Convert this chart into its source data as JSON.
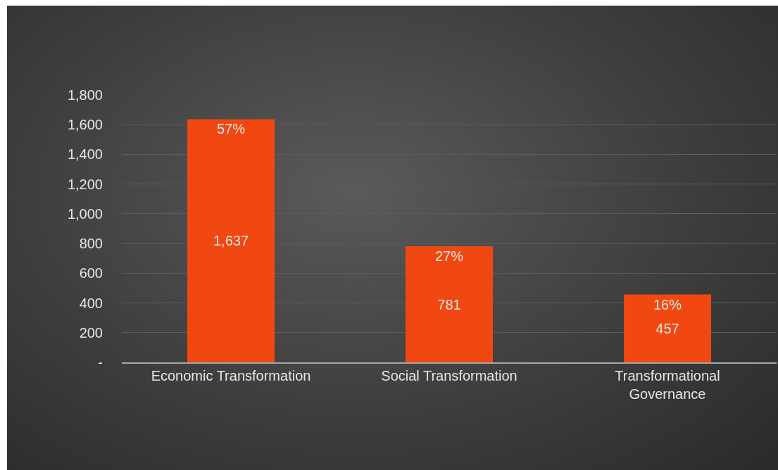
{
  "chart_data": {
    "type": "bar",
    "categories": [
      "Economic Transformation",
      "Social Transformation",
      "Transformational Governance"
    ],
    "values": [
      1637,
      781,
      457
    ],
    "value_labels": [
      "1,637",
      "781",
      "457"
    ],
    "color": "#f04810",
    "ylim": [
      0,
      1800
    ],
    "yticks": [
      {
        "value": 0,
        "label": "-"
      },
      {
        "value": 200,
        "label": "200"
      },
      {
        "value": 400,
        "label": "400"
      },
      {
        "value": 600,
        "label": "600"
      },
      {
        "value": 800,
        "label": "800"
      },
      {
        "value": 1000,
        "label": "1,000"
      },
      {
        "value": 1200,
        "label": "1,200"
      },
      {
        "value": 1400,
        "label": "1,400"
      },
      {
        "value": 1600,
        "label": "1,600"
      },
      {
        "value": 1800,
        "label": "1,800"
      }
    ],
    "grid": "y",
    "annotations": [
      {
        "text": "57%",
        "x": "Economic Transformation",
        "y": 1637
      },
      {
        "text": "27%",
        "x": "Social Transformation",
        "y": 781
      },
      {
        "text": "16%",
        "x": "Transformational Governance",
        "y": 457
      }
    ]
  }
}
